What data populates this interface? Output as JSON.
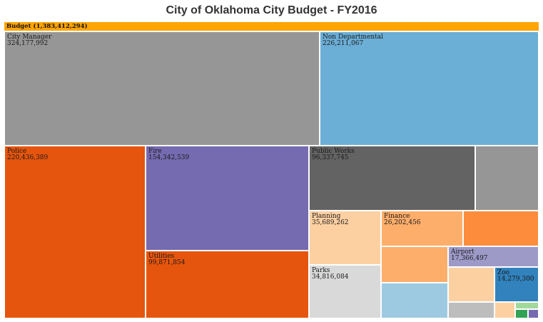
{
  "chart_data": {
    "type": "treemap",
    "title": "City of Oklahoma City Budget - FY2016",
    "root": {
      "name": "Budget",
      "value": 1383412294,
      "label": "Budget (1,383,412,294)"
    },
    "cells": [
      {
        "name": "City Manager",
        "value": 324177992,
        "display_value": "324,177,992",
        "color": "#969696",
        "labeled": true
      },
      {
        "name": "Non Departmental",
        "value": 226211067,
        "display_value": "226,211,067",
        "color": "#6baed6",
        "labeled": true
      },
      {
        "name": "Police",
        "value": 220436389,
        "display_value": "220,436,389",
        "color": "#e6550d",
        "labeled": true
      },
      {
        "name": "Fire",
        "value": 154342539,
        "display_value": "154,342,539",
        "color": "#756bb1",
        "labeled": true
      },
      {
        "name": "Utilities",
        "value": 99871854,
        "display_value": "99,871,854",
        "color": "#e6550d",
        "labeled": true
      },
      {
        "name": "Public Works",
        "value": 96337745,
        "display_value": "96,337,745",
        "color": "#636363",
        "labeled": true
      },
      {
        "name": "",
        "value": 0,
        "display_value": "",
        "color": "#969696",
        "labeled": false
      },
      {
        "name": "Planning",
        "value": 35689262,
        "display_value": "35,689,262",
        "color": "#fdd0a2",
        "labeled": true
      },
      {
        "name": "Finance",
        "value": 26202456,
        "display_value": "26,202,456",
        "color": "#fdae6b",
        "labeled": true
      },
      {
        "name": "",
        "value": 0,
        "display_value": "",
        "color": "#fd8d3c",
        "labeled": false
      },
      {
        "name": "Parks",
        "value": 34816084,
        "display_value": "34,816,084",
        "color": "#d9d9d9",
        "labeled": true
      },
      {
        "name": "",
        "value": 0,
        "display_value": "",
        "color": "#fdae6b",
        "labeled": false
      },
      {
        "name": "Airport",
        "value": 17366497,
        "display_value": "17,366,497",
        "color": "#9e9ac8",
        "labeled": true
      },
      {
        "name": "",
        "value": 0,
        "display_value": "",
        "color": "#9ecae1",
        "labeled": false
      },
      {
        "name": "",
        "value": 0,
        "display_value": "",
        "color": "#fdd0a2",
        "labeled": false
      },
      {
        "name": "Zoo",
        "value": 14279300,
        "display_value": "14,279,300",
        "color": "#3182bd",
        "labeled": true
      },
      {
        "name": "",
        "value": 0,
        "display_value": "",
        "color": "#bdbdbd",
        "labeled": false
      },
      {
        "name": "",
        "value": 0,
        "display_value": "",
        "color": "#fdd0a2",
        "labeled": false
      },
      {
        "name": "",
        "value": 0,
        "display_value": "",
        "color": "#a1d99b",
        "labeled": false
      },
      {
        "name": "",
        "value": 0,
        "display_value": "",
        "color": "#31a354",
        "labeled": false
      },
      {
        "name": "",
        "value": 0,
        "display_value": "",
        "color": "#756bb1",
        "labeled": false
      }
    ]
  }
}
